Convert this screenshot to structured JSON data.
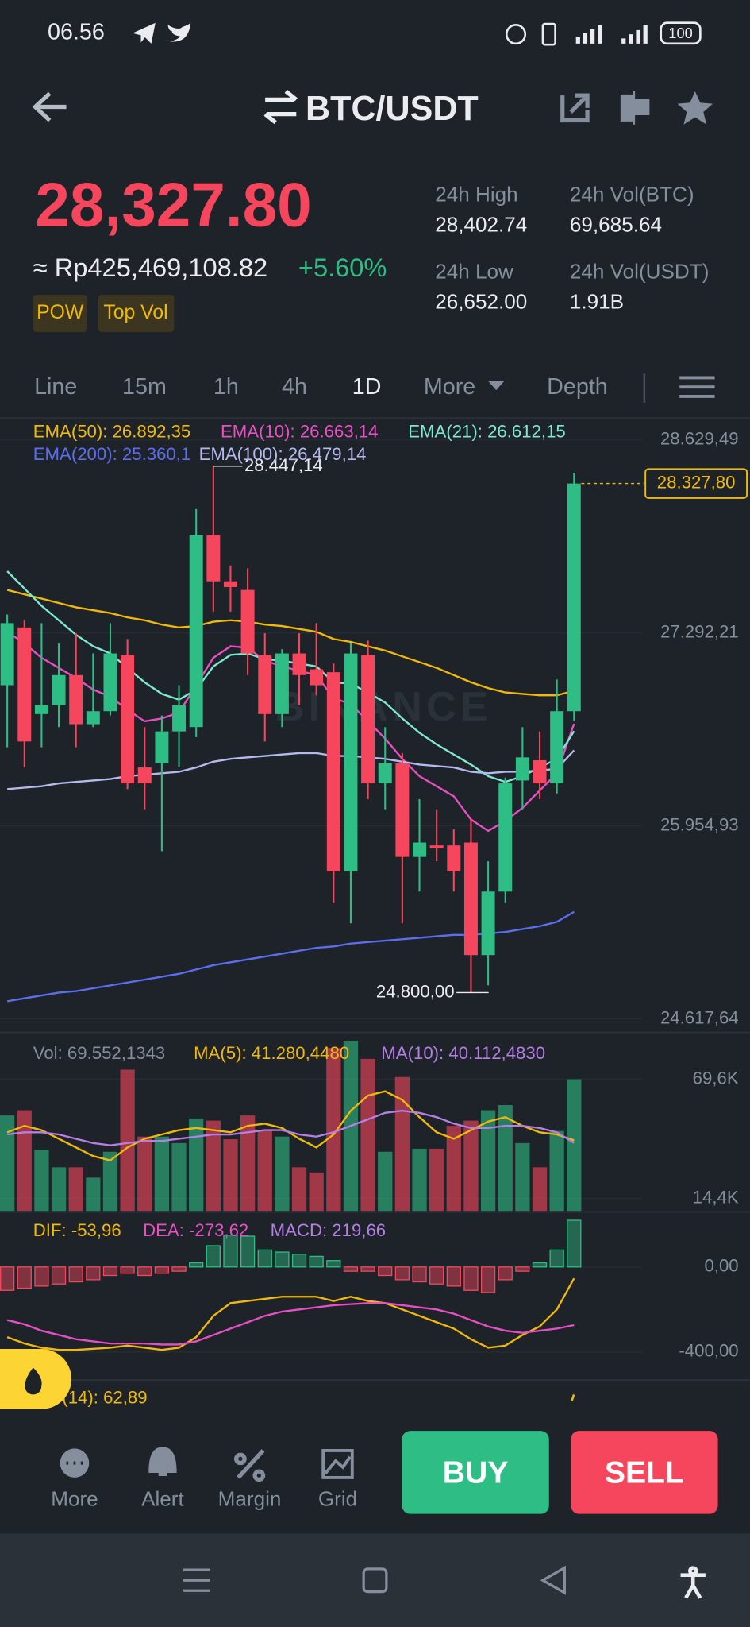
{
  "status": {
    "time": "06.56",
    "battery": "100"
  },
  "header": {
    "title": "BTC/USDT"
  },
  "ticker": {
    "price": "28,327.80",
    "fiat": "≈ Rp425,469,108.82",
    "change": "+5.60%",
    "tags": [
      "POW",
      "Top Vol"
    ],
    "stats": [
      {
        "label": "24h High",
        "value": "28,402.74"
      },
      {
        "label": "24h Vol(BTC)",
        "value": "69,685.64"
      },
      {
        "label": "24h Low",
        "value": "26,652.00"
      },
      {
        "label": "24h Vol(USDT)",
        "value": "1.91B"
      }
    ]
  },
  "tabs": [
    "Line",
    "15m",
    "1h",
    "4h",
    "1D",
    "More",
    "Depth"
  ],
  "chart_data": [
    {
      "type": "candlestick",
      "watermark": "BINANCE",
      "ylim": [
        24524,
        28766
      ],
      "yticks": [
        {
          "value": 28629.49,
          "label": "28.629,49"
        },
        {
          "value": 27292.21,
          "label": "27.292,21"
        },
        {
          "value": 25954.93,
          "label": "25.954,93"
        },
        {
          "value": 24617.64,
          "label": "24.617,64"
        }
      ],
      "up_color": "#2ebd85",
      "down_color": "#f6465d",
      "open": [
        26930,
        27330,
        26730,
        26790,
        27000,
        26660,
        26750,
        27140,
        26360,
        26390,
        26610,
        26640,
        27970,
        27650,
        27590,
        27140,
        26730,
        27150,
        27040,
        27020,
        25640,
        27140,
        26250,
        26390,
        25740,
        25820,
        25820,
        25840,
        25060,
        25500,
        26270,
        26410,
        26250,
        26750
      ],
      "high": [
        27420,
        27380,
        27360,
        27220,
        27290,
        27150,
        27360,
        27250,
        26640,
        26720,
        26930,
        28150,
        28447.14,
        27760,
        27740,
        27290,
        27180,
        27290,
        27360,
        27080,
        27220,
        27240,
        26640,
        26460,
        26140,
        26070,
        25930,
        26000,
        25710,
        26290,
        26640,
        26610,
        26970,
        28402.74
      ],
      "low": [
        26500,
        26360,
        26500,
        26640,
        26500,
        26640,
        26720,
        26210,
        26070,
        25780,
        26360,
        26570,
        27440,
        27440,
        27000,
        26540,
        26640,
        26790,
        26860,
        25420,
        25280,
        26140,
        26070,
        25280,
        25500,
        25710,
        25500,
        24800,
        24850,
        25420,
        26070,
        26140,
        26180,
        26680
      ],
      "close": [
        27360,
        26540,
        26790,
        27000,
        26660,
        26750,
        27150,
        26250,
        26250,
        26610,
        26790,
        27970,
        27650,
        27610,
        27150,
        26730,
        27150,
        27000,
        26930,
        25640,
        27150,
        26250,
        26390,
        25740,
        25840,
        25800,
        25640,
        25060,
        25500,
        26250,
        26430,
        26250,
        26750,
        28327.8
      ],
      "high_label": "28.447,14",
      "low_label": "24.800,00",
      "last_label": "28.327,80",
      "series": [
        {
          "legend": "EMA(50): 26.892,35",
          "color": "#f0b90b",
          "values": [
            27590,
            27560,
            27530,
            27500,
            27470,
            27450,
            27430,
            27400,
            27380,
            27350,
            27330,
            27340,
            27370,
            27380,
            27370,
            27350,
            27340,
            27320,
            27300,
            27250,
            27230,
            27200,
            27170,
            27130,
            27090,
            27050,
            27000,
            26950,
            26910,
            26880,
            26870,
            26860,
            26860,
            26892.35
          ]
        },
        {
          "legend": "EMA(10): 26.663,14",
          "color": "#e84fc4",
          "values": [
            27300,
            27220,
            27120,
            27050,
            26980,
            26900,
            26850,
            26760,
            26680,
            26700,
            26740,
            26930,
            27120,
            27200,
            27190,
            27100,
            27060,
            27030,
            27000,
            26840,
            26800,
            26680,
            26560,
            26420,
            26300,
            26230,
            26160,
            26000,
            25920,
            25990,
            26080,
            26200,
            26320,
            26663.14
          ]
        },
        {
          "legend": "EMA(21): 26.612,15",
          "color": "#7ee8d0",
          "values": [
            27720,
            27600,
            27480,
            27380,
            27280,
            27200,
            27150,
            27050,
            26950,
            26870,
            26830,
            26900,
            27060,
            27140,
            27150,
            27110,
            27100,
            27080,
            27060,
            26950,
            26940,
            26880,
            26810,
            26700,
            26600,
            26520,
            26450,
            26380,
            26300,
            26260,
            26300,
            26360,
            26420,
            26612.15
          ]
        },
        {
          "legend": "EMA(200): 25.360,1",
          "color": "#5c6ef0",
          "values": [
            24740,
            24760,
            24780,
            24800,
            24810,
            24830,
            24850,
            24870,
            24890,
            24910,
            24930,
            24960,
            24990,
            25010,
            25030,
            25050,
            25070,
            25090,
            25110,
            25120,
            25140,
            25150,
            25160,
            25170,
            25180,
            25190,
            25200,
            25200,
            25210,
            25220,
            25240,
            25260,
            25290,
            25360
          ]
        },
        {
          "legend": "EMA(100): 26.479,14",
          "color": "#b6b8f0",
          "values": [
            26210,
            26220,
            26230,
            26250,
            26260,
            26270,
            26280,
            26300,
            26310,
            26320,
            26330,
            26360,
            26400,
            26420,
            26430,
            26440,
            26450,
            26460,
            26460,
            26440,
            26440,
            26430,
            26420,
            26400,
            26380,
            26370,
            26360,
            26330,
            26320,
            26330,
            26330,
            26340,
            26350,
            26479.14
          ]
        }
      ]
    },
    {
      "type": "bar",
      "volume_legend": "Vol: 69.552,1343",
      "ylim": [
        8.6,
        87.4
      ],
      "yticks": [
        {
          "value": 69.6,
          "label": "69,6K"
        },
        {
          "value": 14.4,
          "label": "14,4K"
        }
      ],
      "values": [
        52.8,
        55.2,
        37,
        28.8,
        28.8,
        24,
        36,
        74,
        43,
        43,
        40,
        51.4,
        50.4,
        41.8,
        52.8,
        45.6,
        43,
        28.8,
        26.4,
        84,
        87.4,
        79,
        36,
        70.6,
        37.4,
        37.4,
        48,
        50.4,
        55.2,
        57.6,
        40,
        28.8,
        45.6,
        69.55
      ],
      "series": [
        {
          "legend": "MA(5): 41.280,4480",
          "color": "#f0b90b",
          "values": [
            45,
            48,
            46,
            42,
            38,
            34,
            32,
            38,
            42,
            44,
            46,
            47,
            46,
            45,
            48,
            49,
            47,
            42,
            38,
            44,
            55,
            62,
            64,
            60,
            52,
            45,
            42,
            46,
            50,
            52,
            48,
            45,
            44,
            41.28
          ]
        },
        {
          "legend": "MA(10): 40.112,4830",
          "color": "#b57fe6",
          "values": [
            44,
            45,
            45,
            44,
            42,
            40,
            39,
            40,
            41,
            41,
            42,
            43,
            44,
            44,
            45,
            46,
            46,
            44,
            43,
            45,
            48,
            51,
            54,
            55,
            54,
            52,
            49,
            47,
            47,
            48,
            48,
            47,
            45,
            40.11
          ]
        }
      ]
    },
    {
      "type": "bar",
      "ylim": [
        -532,
        249
      ],
      "yticks": [
        {
          "value": 0,
          "label": "0,00"
        },
        {
          "value": -400,
          "label": "-400,00"
        }
      ],
      "values": [
        -110,
        -100,
        -90,
        -80,
        -70,
        -60,
        -40,
        -30,
        -40,
        -30,
        -20,
        20,
        100,
        150,
        145,
        80,
        70,
        60,
        50,
        30,
        -20,
        -20,
        -40,
        -60,
        -70,
        -80,
        -90,
        -110,
        -120,
        -60,
        -20,
        20,
        80,
        219.66
      ],
      "series": [
        {
          "legend": "DIF: -53,96",
          "color": "#f0b90b",
          "values": [
            -330,
            -360,
            -380,
            -390,
            -390,
            -385,
            -380,
            -370,
            -380,
            -390,
            -380,
            -330,
            -230,
            -170,
            -160,
            -150,
            -140,
            -140,
            -140,
            -160,
            -140,
            -160,
            -170,
            -200,
            -230,
            -260,
            -290,
            -340,
            -380,
            -370,
            -320,
            -280,
            -200,
            -53.96
          ]
        },
        {
          "legend": "DEA: -273,62",
          "color": "#e84fc4",
          "values": [
            -250,
            -270,
            -300,
            -320,
            -340,
            -350,
            -360,
            -360,
            -360,
            -365,
            -365,
            -350,
            -320,
            -290,
            -260,
            -230,
            -210,
            -200,
            -190,
            -180,
            -175,
            -170,
            -170,
            -180,
            -190,
            -200,
            -220,
            -250,
            -280,
            -300,
            -310,
            -300,
            -290,
            -273.62
          ]
        }
      ],
      "macd_legend": "MACD: 219,66"
    }
  ],
  "rsi_legend": "(14): 62,89",
  "toolbar": {
    "items": [
      "More",
      "Alert",
      "Margin",
      "Grid"
    ],
    "buy": "BUY",
    "sell": "SELL"
  }
}
